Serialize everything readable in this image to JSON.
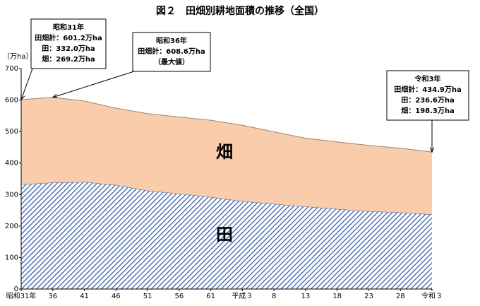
{
  "chart_data": {
    "type": "stacked_area",
    "title": "図２　田畑別耕地面積の推移（全国）",
    "y_label": "（万ha）",
    "categories": [
      "昭和31年",
      "36",
      "41",
      "46",
      "51",
      "56",
      "61",
      "平成３",
      "8",
      "13",
      "18",
      "23",
      "28",
      "令和３"
    ],
    "ylim": [
      0,
      700
    ],
    "yticks": [
      0,
      100,
      200,
      300,
      400,
      500,
      600,
      700
    ],
    "series": [
      {
        "name": "田",
        "color": "#3a5fa8",
        "values": [
          332.0,
          338,
          340,
          330,
          312,
          303,
          292,
          279,
          270,
          262,
          254,
          247,
          243,
          236.6
        ]
      },
      {
        "name": "畑",
        "color": "#f9cdab",
        "values": [
          269.2,
          270.6,
          257,
          244,
          245,
          243,
          244,
          241,
          229,
          217,
          213,
          209,
          204,
          198.3
        ]
      }
    ],
    "annotations": [
      {
        "lines": [
          "昭和31年",
          "田畑計：601.2万ha",
          "田：332.0万ha",
          "畑：269.2万ha"
        ]
      },
      {
        "lines": [
          "昭和36年",
          "田畑計：608.6万ha",
          "（最大値）"
        ]
      },
      {
        "lines": [
          "令和3年",
          "田畑計：434.9万ha",
          "田：236.6万ha",
          "畑：198.3万ha"
        ]
      }
    ]
  }
}
